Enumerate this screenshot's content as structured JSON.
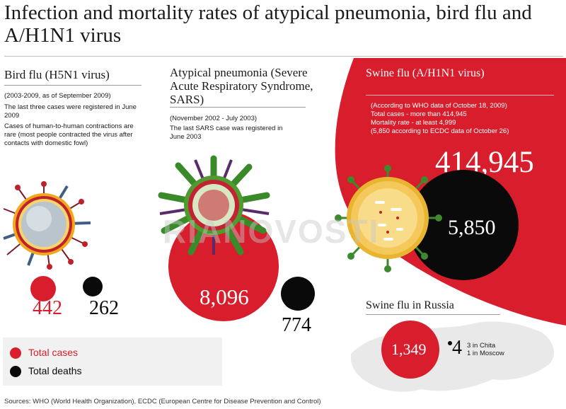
{
  "title": "Infection and mortality rates of atypical pneumonia, bird flu and A/H1N1 virus",
  "colors": {
    "red": "#d81e2c",
    "black": "#0a0a0a",
    "grey_panel": "#f1f1f1"
  },
  "bird_flu": {
    "heading": "Bird flu (H5N1 virus)",
    "note1": "(2003-2009, as of September 2009)",
    "note2": "The last three cases were registered in June 2009",
    "note3": "Cases of human-to-human contractions are rare (most people contracted the virus after contacts with domestic fowl)",
    "total_cases": "442",
    "total_deaths": "262",
    "cases_value": 442,
    "deaths_value": 262
  },
  "sars": {
    "heading": "Atypical pneumonia (Severe Acute Respiratory Syndrome, SARS)",
    "note1": "(November 2002 - July 2003)",
    "note2": "The last SARS case was registered in June 2003",
    "total_cases": "8,096",
    "total_deaths": "774",
    "cases_value": 8096,
    "deaths_value": 774
  },
  "swine_flu": {
    "heading": "Swine flu (A/H1N1 virus)",
    "note1": "(According to WHO data of October 18, 2009)",
    "note2": "Total cases - more than 414,945",
    "note3": "Mortality rate - at least 4,999",
    "note4": "(5,850 according to ECDC data of October 26)",
    "total_cases": "414,945",
    "total_deaths": "5,850",
    "cases_value": 414945,
    "deaths_value": 5850
  },
  "russia": {
    "heading": "Swine flu in Russia",
    "total_cases": "1,349",
    "total_deaths": "4",
    "detail1": "3 in Chita",
    "detail2": "1 in Moscow"
  },
  "legend": {
    "cases_label": "Total cases",
    "deaths_label": "Total deaths"
  },
  "sources": "Sources: WHO (World Health Organization), ECDC (European Centre for Disease Prevention and Control)",
  "watermark": "RIANOVOSTI",
  "icons": {
    "bird_flu_virus": "virus-illustration-icon",
    "sars_virus": "virus-illustration-icon",
    "swine_flu_virus": "virus-illustration-icon",
    "russia_map": "map-silhouette-icon"
  }
}
